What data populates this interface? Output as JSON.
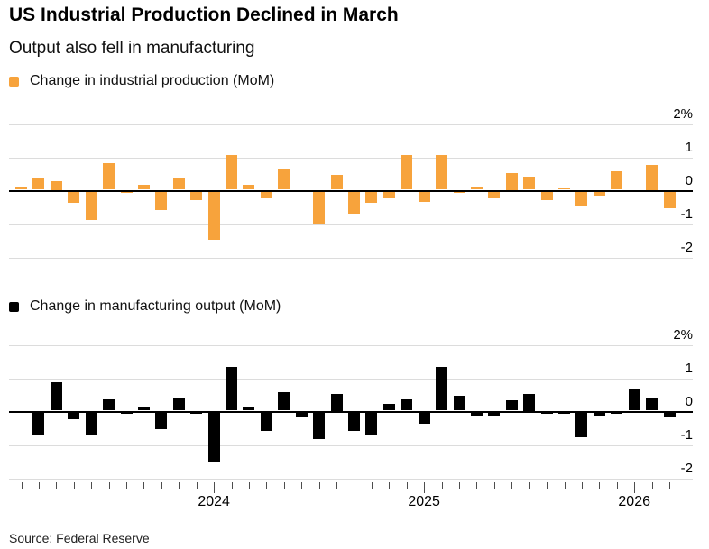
{
  "header": {
    "title": "US Industrial Production Declined in March",
    "subtitle": "Output also fell in manufacturing"
  },
  "source": "Source: Federal Reserve",
  "colors": {
    "orange": "#F7A33C",
    "black": "#000000",
    "grid": "#DCDCDC",
    "zero_line": "#000000",
    "tick": "#4D4D4D"
  },
  "axis": {
    "y_tick_labels": [
      "2%",
      "1",
      "0",
      "-1",
      "-2"
    ],
    "y_tick_values": [
      2,
      1,
      0,
      -1,
      -2
    ],
    "x_year_labels": [
      "2024",
      "2025",
      "2026"
    ]
  },
  "chart_data": [
    {
      "type": "bar",
      "legend": "Change in industrial production (MoM)",
      "color": "#F7A33C",
      "unit": "%",
      "ylim": [
        -2,
        2
      ],
      "grid": true,
      "legend_position": "top-left",
      "x": [
        "2023-02",
        "2023-03",
        "2023-04",
        "2023-05",
        "2023-06",
        "2023-07",
        "2023-08",
        "2023-09",
        "2023-10",
        "2023-11",
        "2023-12",
        "2024-01",
        "2024-02",
        "2024-03",
        "2024-04",
        "2024-05",
        "2024-06",
        "2024-07",
        "2024-08",
        "2024-09",
        "2024-10",
        "2024-11",
        "2024-12",
        "2025-01",
        "2025-02",
        "2025-03",
        "2025-04",
        "2025-05",
        "2025-06",
        "2025-07",
        "2025-08",
        "2025-09",
        "2025-10",
        "2025-11",
        "2025-12",
        "2026-01",
        "2026-02",
        "2026-03"
      ],
      "values": [
        0.1,
        0.35,
        0.25,
        -0.35,
        -0.85,
        0.8,
        -0.05,
        0.15,
        -0.55,
        0.35,
        -0.25,
        -1.45,
        1.05,
        0.15,
        -0.2,
        0.6,
        0.0,
        -0.95,
        0.45,
        -0.65,
        -0.35,
        -0.2,
        1.05,
        -0.3,
        1.05,
        -0.05,
        0.1,
        -0.2,
        0.5,
        0.4,
        -0.25,
        0.05,
        -0.45,
        -0.12,
        0.55,
        0.0,
        0.75,
        -0.5
      ]
    },
    {
      "type": "bar",
      "legend": "Change in manufacturing output (MoM)",
      "color": "#000000",
      "unit": "%",
      "ylim": [
        -2,
        2
      ],
      "grid": true,
      "legend_position": "top-left",
      "x": [
        "2023-02",
        "2023-03",
        "2023-04",
        "2023-05",
        "2023-06",
        "2023-07",
        "2023-08",
        "2023-09",
        "2023-10",
        "2023-11",
        "2023-12",
        "2024-01",
        "2024-02",
        "2024-03",
        "2024-04",
        "2024-05",
        "2024-06",
        "2024-07",
        "2024-08",
        "2024-09",
        "2024-10",
        "2024-11",
        "2024-12",
        "2025-01",
        "2025-02",
        "2025-03",
        "2025-04",
        "2025-05",
        "2025-06",
        "2025-07",
        "2025-08",
        "2025-09",
        "2025-10",
        "2025-11",
        "2025-12",
        "2026-01",
        "2026-02",
        "2026-03"
      ],
      "values": [
        0.0,
        -0.7,
        0.85,
        -0.2,
        -0.7,
        0.35,
        -0.05,
        0.1,
        -0.5,
        0.4,
        -0.05,
        -1.5,
        1.3,
        0.1,
        -0.55,
        0.55,
        -0.15,
        -0.8,
        0.5,
        -0.55,
        -0.7,
        0.2,
        0.35,
        -0.35,
        1.3,
        0.45,
        -0.1,
        -0.1,
        0.3,
        0.5,
        -0.05,
        -0.05,
        -0.75,
        -0.1,
        -0.05,
        0.65,
        0.4,
        -0.15
      ]
    }
  ]
}
